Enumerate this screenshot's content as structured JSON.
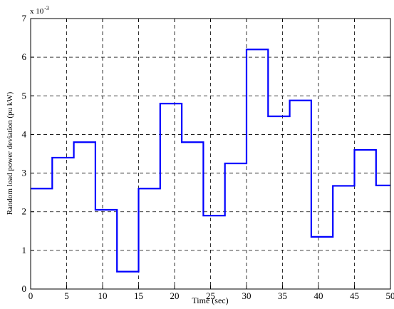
{
  "chart_data": {
    "type": "line",
    "title": "",
    "xlabel": "Time (sec)",
    "ylabel": "Random load power deviation (pu kW)",
    "y_scale_label": {
      "base": "x 10",
      "exponent": "-3"
    },
    "xlim": [
      0,
      50
    ],
    "ylim": [
      0,
      7
    ],
    "x_ticks": [
      0,
      5,
      10,
      15,
      20,
      25,
      30,
      35,
      40,
      45,
      50
    ],
    "y_ticks": [
      0,
      1,
      2,
      3,
      4,
      5,
      6,
      7
    ],
    "grid": true,
    "grid_style": "dashed",
    "line_style": "step",
    "series": [
      {
        "color": "#0000ff",
        "x": [
          0,
          3,
          6,
          9,
          12,
          15,
          18,
          21,
          24,
          27,
          30,
          33,
          36,
          39,
          42,
          45,
          48,
          50
        ],
        "y": [
          2.6,
          3.4,
          3.8,
          2.05,
          0.45,
          2.6,
          4.8,
          3.8,
          1.9,
          3.25,
          6.2,
          4.47,
          4.88,
          1.35,
          2.67,
          3.6,
          2.68,
          2.68
        ]
      }
    ]
  }
}
